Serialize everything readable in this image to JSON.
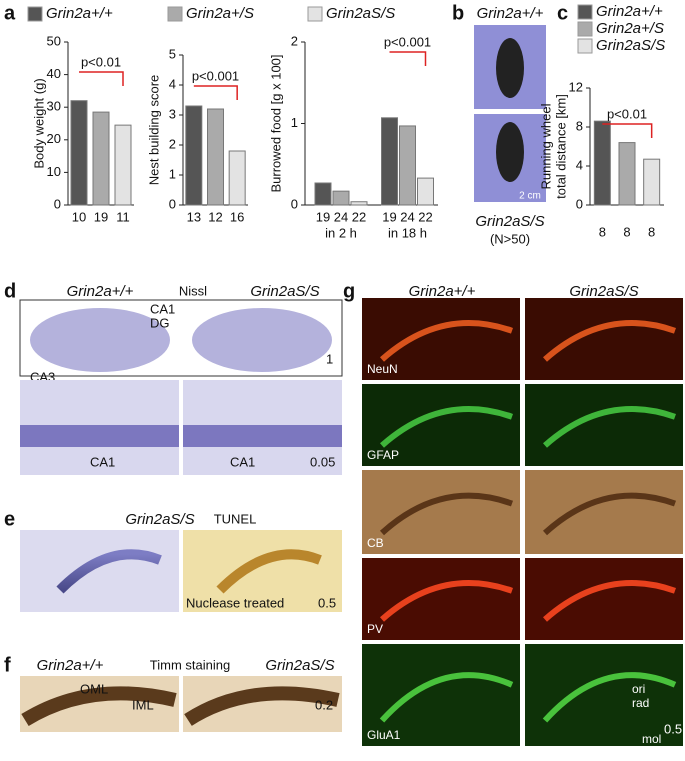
{
  "panels": {
    "a": {
      "letter": "a",
      "legend": [
        "Grin2a+/+",
        "Grin2a+/S",
        "Grin2aS/S"
      ]
    },
    "b": {
      "letter": "b",
      "top": "Grin2a+/+",
      "bottom": "Grin2aS/S",
      "note": "(N>50)",
      "scale": "2 cm"
    },
    "c": {
      "letter": "c",
      "legend": [
        "Grin2a+/+",
        "Grin2a+/S",
        "Grin2aS/S"
      ]
    },
    "d": {
      "letter": "d",
      "left": "Grin2a+/+",
      "stain": "Nissl",
      "right": "Grin2aS/S",
      "regions": [
        "CA1",
        "DG",
        "CA3"
      ],
      "scale_top": "1",
      "lower_left": "CA1",
      "lower_right": "CA1",
      "scale_bottom": "0.05"
    },
    "e": {
      "letter": "e",
      "genotype": "Grin2aS/S",
      "stain": "TUNEL",
      "treated": "Nuclease treated",
      "scale": "0.5"
    },
    "f": {
      "letter": "f",
      "left": "Grin2a+/+",
      "stain": "Timm staining",
      "right": "Grin2aS/S",
      "layers": [
        "OML",
        "IML"
      ],
      "scale": "0.2"
    },
    "g": {
      "letter": "g",
      "left": "Grin2a+/+",
      "right": "Grin2aS/S",
      "rows": [
        "NeuN",
        "GFAP",
        "CB",
        "PV",
        "GluA1"
      ],
      "layers": [
        "ori",
        "rad",
        "mol"
      ],
      "scale": "0.5"
    }
  },
  "chart_data": [
    {
      "type": "bar",
      "ylabel": [
        "Body weight (g)"
      ],
      "categories": [
        "10",
        "19",
        "11"
      ],
      "values": [
        32,
        28.5,
        24.5
      ],
      "colors": [
        "#555555",
        "#aaaaaa",
        "#e3e3e3"
      ],
      "ylim": [
        0,
        50
      ],
      "yticks": [
        0,
        10,
        20,
        30,
        40,
        50
      ],
      "annotation": "p<0.01"
    },
    {
      "type": "bar",
      "ylabel": [
        "Nest building score"
      ],
      "categories": [
        "13",
        "12",
        "16"
      ],
      "values": [
        3.3,
        3.2,
        1.8
      ],
      "colors": [
        "#555555",
        "#aaaaaa",
        "#e3e3e3"
      ],
      "ylim": [
        0,
        5
      ],
      "yticks": [
        0,
        1,
        2,
        3,
        4,
        5
      ],
      "annotation": "p<0.001"
    },
    {
      "type": "bar",
      "ylabel": [
        "Burrowed food [g x 100]"
      ],
      "categories": [
        "19",
        "24",
        "22",
        "19",
        "24",
        "22"
      ],
      "values": [
        0.27,
        0.17,
        0.04,
        1.07,
        0.97,
        0.33
      ],
      "colors": [
        "#555555",
        "#aaaaaa",
        "#e3e3e3",
        "#555555",
        "#aaaaaa",
        "#e3e3e3"
      ],
      "group_labels": [
        "in 2 h",
        "in 18 h"
      ],
      "ylim": [
        0,
        2
      ],
      "yticks": [
        0,
        1,
        2
      ],
      "annotation": "p<0.001"
    },
    {
      "type": "bar",
      "ylabel": [
        "Running wheel",
        "total distance [km]"
      ],
      "categories": [
        "8",
        "8",
        "8"
      ],
      "values": [
        8.6,
        6.4,
        4.7
      ],
      "colors": [
        "#555555",
        "#aaaaaa",
        "#e3e3e3"
      ],
      "ylim": [
        0,
        12
      ],
      "yticks": [
        0,
        4,
        8,
        12
      ],
      "annotation": "p<0.01"
    }
  ]
}
